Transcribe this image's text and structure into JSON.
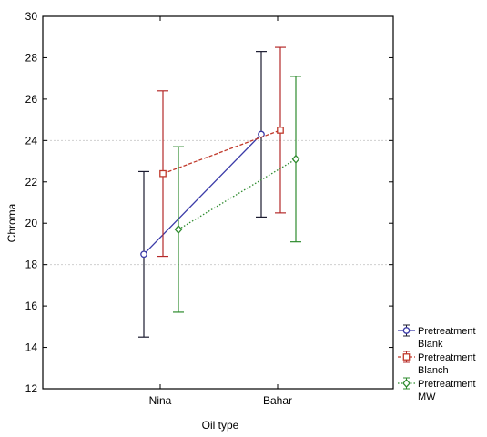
{
  "chart_data": {
    "type": "line",
    "title": "",
    "xlabel": "Oil type",
    "ylabel": "Chroma",
    "categories": [
      "Nina",
      "Bahar"
    ],
    "ylim": [
      12,
      30
    ],
    "yticks": [
      12,
      14,
      16,
      18,
      20,
      22,
      24,
      26,
      28,
      30
    ],
    "grid": "dotted horizontal lines at 18 and 24",
    "legend_position": "bottom-right, outside plot",
    "series": [
      {
        "name": "Pretreatment Blank",
        "legend_lines": [
          "Pretreatment",
          "Blank"
        ],
        "color": "#3b3ba8",
        "errorbar_color": "#1c1c30",
        "marker": "circle",
        "line_style": "solid",
        "values": [
          18.5,
          24.3
        ],
        "lower": [
          14.5,
          20.3
        ],
        "upper": [
          22.5,
          28.3
        ]
      },
      {
        "name": "Pretreatment Blanch",
        "legend_lines": [
          "Pretreatment",
          "Blanch"
        ],
        "color": "#c0392b",
        "errorbar_color": "#b52a2a",
        "marker": "square",
        "line_style": "dashed",
        "values": [
          22.4,
          24.5
        ],
        "lower": [
          18.4,
          20.5
        ],
        "upper": [
          26.4,
          28.5
        ]
      },
      {
        "name": "Pretreatment MW",
        "legend_lines": [
          "Pretreatment",
          "MW"
        ],
        "color": "#2e8b2e",
        "errorbar_color": "#2e8b2e",
        "marker": "diamond",
        "line_style": "dotted",
        "values": [
          19.7,
          23.1
        ],
        "lower": [
          15.7,
          19.1
        ],
        "upper": [
          23.7,
          27.1
        ]
      }
    ]
  }
}
